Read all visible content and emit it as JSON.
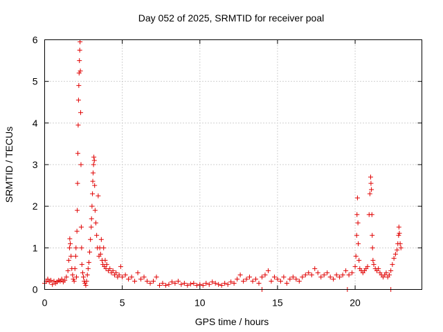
{
  "chart_data": {
    "type": "scatter",
    "title": "Day 052 of 2025, SRMTID for receiver poal",
    "xlabel": "GPS time / hours",
    "ylabel": "SRMTID / TECUs",
    "xlim": [
      0,
      24.3
    ],
    "ylim": [
      0,
      6
    ],
    "x_ticks": [
      0,
      5,
      10,
      15,
      20
    ],
    "y_ticks": [
      0,
      1,
      2,
      3,
      4,
      5,
      6
    ],
    "grid": true,
    "marker": "+",
    "color": "#e00000",
    "series": [
      {
        "name": "SRMTID",
        "points": [
          [
            0.0,
            0.15
          ],
          [
            0.1,
            0.2
          ],
          [
            0.2,
            0.25
          ],
          [
            0.3,
            0.18
          ],
          [
            0.4,
            0.22
          ],
          [
            0.5,
            0.12
          ],
          [
            0.6,
            0.2
          ],
          [
            0.7,
            0.15
          ],
          [
            0.8,
            0.18
          ],
          [
            0.9,
            0.22
          ],
          [
            1.0,
            0.2
          ],
          [
            1.1,
            0.25
          ],
          [
            1.2,
            0.18
          ],
          [
            1.3,
            0.22
          ],
          [
            1.4,
            0.3
          ],
          [
            1.5,
            0.45
          ],
          [
            1.55,
            0.7
          ],
          [
            1.6,
            1.0
          ],
          [
            1.62,
            1.22
          ],
          [
            1.65,
            1.1
          ],
          [
            1.7,
            0.8
          ],
          [
            1.75,
            0.5
          ],
          [
            1.8,
            0.35
          ],
          [
            1.85,
            0.25
          ],
          [
            1.9,
            0.2
          ],
          [
            1.95,
            0.5
          ],
          [
            2.0,
            0.8
          ],
          [
            2.02,
            1.0
          ],
          [
            2.05,
            0.3
          ],
          [
            2.08,
            1.4
          ],
          [
            2.1,
            1.9
          ],
          [
            2.12,
            2.55
          ],
          [
            2.14,
            3.27
          ],
          [
            2.16,
            3.95
          ],
          [
            2.18,
            4.55
          ],
          [
            2.2,
            4.9
          ],
          [
            2.22,
            5.2
          ],
          [
            2.24,
            5.5
          ],
          [
            2.26,
            5.75
          ],
          [
            2.28,
            5.95
          ],
          [
            2.3,
            5.25
          ],
          [
            2.32,
            4.25
          ],
          [
            2.34,
            3.0
          ],
          [
            2.36,
            1.5
          ],
          [
            2.38,
            1.0
          ],
          [
            2.4,
            0.6
          ],
          [
            2.45,
            0.4
          ],
          [
            2.5,
            0.3
          ],
          [
            2.55,
            0.2
          ],
          [
            2.6,
            0.15
          ],
          [
            2.65,
            0.1
          ],
          [
            2.7,
            0.2
          ],
          [
            2.75,
            0.35
          ],
          [
            2.8,
            0.5
          ],
          [
            2.85,
            0.65
          ],
          [
            2.9,
            0.9
          ],
          [
            2.95,
            1.2
          ],
          [
            3.0,
            1.5
          ],
          [
            3.02,
            1.7
          ],
          [
            3.05,
            2.0
          ],
          [
            3.08,
            2.3
          ],
          [
            3.1,
            2.6
          ],
          [
            3.12,
            2.8
          ],
          [
            3.15,
            3.0
          ],
          [
            3.17,
            3.18
          ],
          [
            3.2,
            3.1
          ],
          [
            3.22,
            2.5
          ],
          [
            3.25,
            1.9
          ],
          [
            3.3,
            1.6
          ],
          [
            3.35,
            1.3
          ],
          [
            3.4,
            1.0
          ],
          [
            3.45,
            2.25
          ],
          [
            3.5,
            0.8
          ],
          [
            3.55,
            1.0
          ],
          [
            3.6,
            0.85
          ],
          [
            3.65,
            1.2
          ],
          [
            3.7,
            0.7
          ],
          [
            3.75,
            0.6
          ],
          [
            3.8,
            1.0
          ],
          [
            3.85,
            0.55
          ],
          [
            3.9,
            0.7
          ],
          [
            3.95,
            0.5
          ],
          [
            4.0,
            0.6
          ],
          [
            4.1,
            0.45
          ],
          [
            4.2,
            0.5
          ],
          [
            4.3,
            0.4
          ],
          [
            4.4,
            0.45
          ],
          [
            4.5,
            0.35
          ],
          [
            4.6,
            0.4
          ],
          [
            4.7,
            0.3
          ],
          [
            4.8,
            0.35
          ],
          [
            4.9,
            0.55
          ],
          [
            5.0,
            0.3
          ],
          [
            5.2,
            0.35
          ],
          [
            5.4,
            0.25
          ],
          [
            5.6,
            0.3
          ],
          [
            5.8,
            0.2
          ],
          [
            6.0,
            0.4
          ],
          [
            6.2,
            0.25
          ],
          [
            6.4,
            0.3
          ],
          [
            6.6,
            0.2
          ],
          [
            6.8,
            0.15
          ],
          [
            7.0,
            0.2
          ],
          [
            7.2,
            0.3
          ],
          [
            7.4,
            0.1
          ],
          [
            7.6,
            0.15
          ],
          [
            7.8,
            0.1
          ],
          [
            8.0,
            0.12
          ],
          [
            8.2,
            0.18
          ],
          [
            8.4,
            0.15
          ],
          [
            8.6,
            0.2
          ],
          [
            8.8,
            0.12
          ],
          [
            9.0,
            0.15
          ],
          [
            9.2,
            0.1
          ],
          [
            9.4,
            0.13
          ],
          [
            9.6,
            0.15
          ],
          [
            9.8,
            0.1
          ],
          [
            10.0,
            0.12
          ],
          [
            10.2,
            0.1
          ],
          [
            10.4,
            0.15
          ],
          [
            10.6,
            0.12
          ],
          [
            10.8,
            0.18
          ],
          [
            11.0,
            0.15
          ],
          [
            11.2,
            0.12
          ],
          [
            11.4,
            0.1
          ],
          [
            11.6,
            0.15
          ],
          [
            11.8,
            0.12
          ],
          [
            12.0,
            0.18
          ],
          [
            12.2,
            0.15
          ],
          [
            12.4,
            0.25
          ],
          [
            12.6,
            0.35
          ],
          [
            12.8,
            0.2
          ],
          [
            13.0,
            0.25
          ],
          [
            13.2,
            0.3
          ],
          [
            13.4,
            0.2
          ],
          [
            13.6,
            0.25
          ],
          [
            13.8,
            0.15
          ],
          [
            14.0,
            0.3
          ],
          [
            14.2,
            0.35
          ],
          [
            14.4,
            0.45
          ],
          [
            14.6,
            0.2
          ],
          [
            14.8,
            0.3
          ],
          [
            15.0,
            0.25
          ],
          [
            15.2,
            0.2
          ],
          [
            15.4,
            0.3
          ],
          [
            15.6,
            0.15
          ],
          [
            15.8,
            0.25
          ],
          [
            16.0,
            0.3
          ],
          [
            16.2,
            0.25
          ],
          [
            16.4,
            0.2
          ],
          [
            16.6,
            0.3
          ],
          [
            16.8,
            0.35
          ],
          [
            17.0,
            0.4
          ],
          [
            17.2,
            0.35
          ],
          [
            17.4,
            0.5
          ],
          [
            17.6,
            0.4
          ],
          [
            17.8,
            0.3
          ],
          [
            18.0,
            0.35
          ],
          [
            18.2,
            0.4
          ],
          [
            18.4,
            0.3
          ],
          [
            18.6,
            0.25
          ],
          [
            18.8,
            0.35
          ],
          [
            19.0,
            0.3
          ],
          [
            19.2,
            0.35
          ],
          [
            19.4,
            0.45
          ],
          [
            19.6,
            0.35
          ],
          [
            19.8,
            0.4
          ],
          [
            20.0,
            0.55
          ],
          [
            20.05,
            0.8
          ],
          [
            20.1,
            1.3
          ],
          [
            20.12,
            1.8
          ],
          [
            20.15,
            2.2
          ],
          [
            20.18,
            1.6
          ],
          [
            20.2,
            1.1
          ],
          [
            20.25,
            0.7
          ],
          [
            20.3,
            0.5
          ],
          [
            20.4,
            0.45
          ],
          [
            20.5,
            0.4
          ],
          [
            20.6,
            0.45
          ],
          [
            20.7,
            0.5
          ],
          [
            20.8,
            0.55
          ],
          [
            20.9,
            1.8
          ],
          [
            20.95,
            2.3
          ],
          [
            21.0,
            2.7
          ],
          [
            21.02,
            2.55
          ],
          [
            21.05,
            2.4
          ],
          [
            21.08,
            1.8
          ],
          [
            21.1,
            1.3
          ],
          [
            21.12,
            1.0
          ],
          [
            21.15,
            0.7
          ],
          [
            21.2,
            0.6
          ],
          [
            21.3,
            0.5
          ],
          [
            21.4,
            0.45
          ],
          [
            21.5,
            0.5
          ],
          [
            21.6,
            0.4
          ],
          [
            21.7,
            0.35
          ],
          [
            21.8,
            0.3
          ],
          [
            21.9,
            0.35
          ],
          [
            22.0,
            0.4
          ],
          [
            22.1,
            0.3
          ],
          [
            22.2,
            0.35
          ],
          [
            22.3,
            0.45
          ],
          [
            22.4,
            0.6
          ],
          [
            22.5,
            0.75
          ],
          [
            22.6,
            0.85
          ],
          [
            22.7,
            0.95
          ],
          [
            22.75,
            1.1
          ],
          [
            22.8,
            1.3
          ],
          [
            22.82,
            1.5
          ],
          [
            22.85,
            1.35
          ],
          [
            22.9,
            1.1
          ],
          [
            22.95,
            1.0
          ],
          [
            14.0,
            0.0
          ],
          [
            19.5,
            0.0
          ],
          [
            22.3,
            0.0
          ]
        ]
      }
    ]
  }
}
